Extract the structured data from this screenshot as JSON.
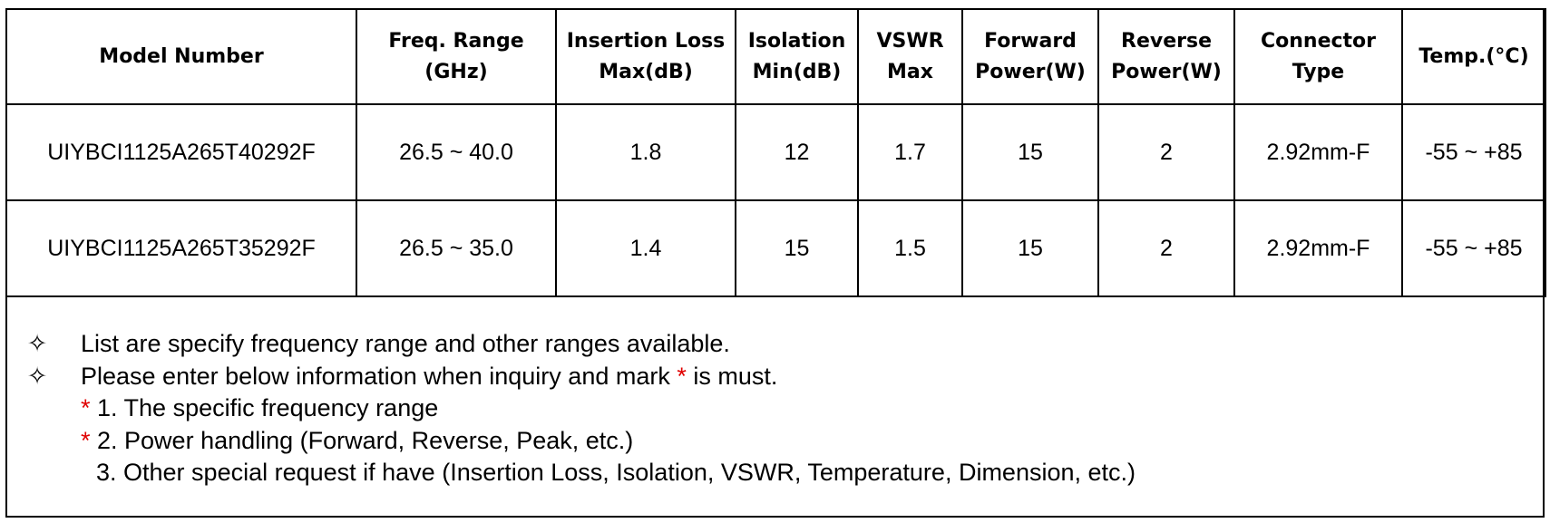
{
  "table": {
    "headers": [
      [
        "Model Number"
      ],
      [
        "Freq. Range",
        "(GHz)"
      ],
      [
        "Insertion Loss",
        "Max(dB)"
      ],
      [
        "Isolation",
        "Min(dB)"
      ],
      [
        "VSWR",
        "Max"
      ],
      [
        "Forward",
        "Power(W)"
      ],
      [
        "Reverse",
        "Power(W)"
      ],
      [
        "Connector",
        "Type"
      ],
      [
        "Temp.(°C)"
      ]
    ],
    "rows": [
      [
        "UIYBCI1125A265T40292F",
        "26.5 ~ 40.0",
        "1.8",
        "12",
        "1.7",
        "15",
        "2",
        "2.92mm-F",
        "-55 ~ +85"
      ],
      [
        "UIYBCI1125A265T35292F",
        "26.5 ~ 35.0",
        "1.4",
        "15",
        "1.5",
        "15",
        "2",
        "2.92mm-F",
        "-55 ~ +85"
      ]
    ]
  },
  "notes": {
    "bullet_symbol": "✧",
    "line1": "List are specify frequency range and other ranges available.",
    "line2_a": "Please enter below information when inquiry and mark ",
    "star": "*",
    "line2_b": " is must.",
    "sub1": " 1. The specific frequency range",
    "sub2": " 2. Power handling (Forward, Reverse, Peak, etc.)",
    "sub3": "3. Other special request if have (Insertion Loss, Isolation, VSWR, Temperature, Dimension, etc.)"
  },
  "colors": {
    "border": "#000000",
    "required_mark": "#e00000"
  }
}
